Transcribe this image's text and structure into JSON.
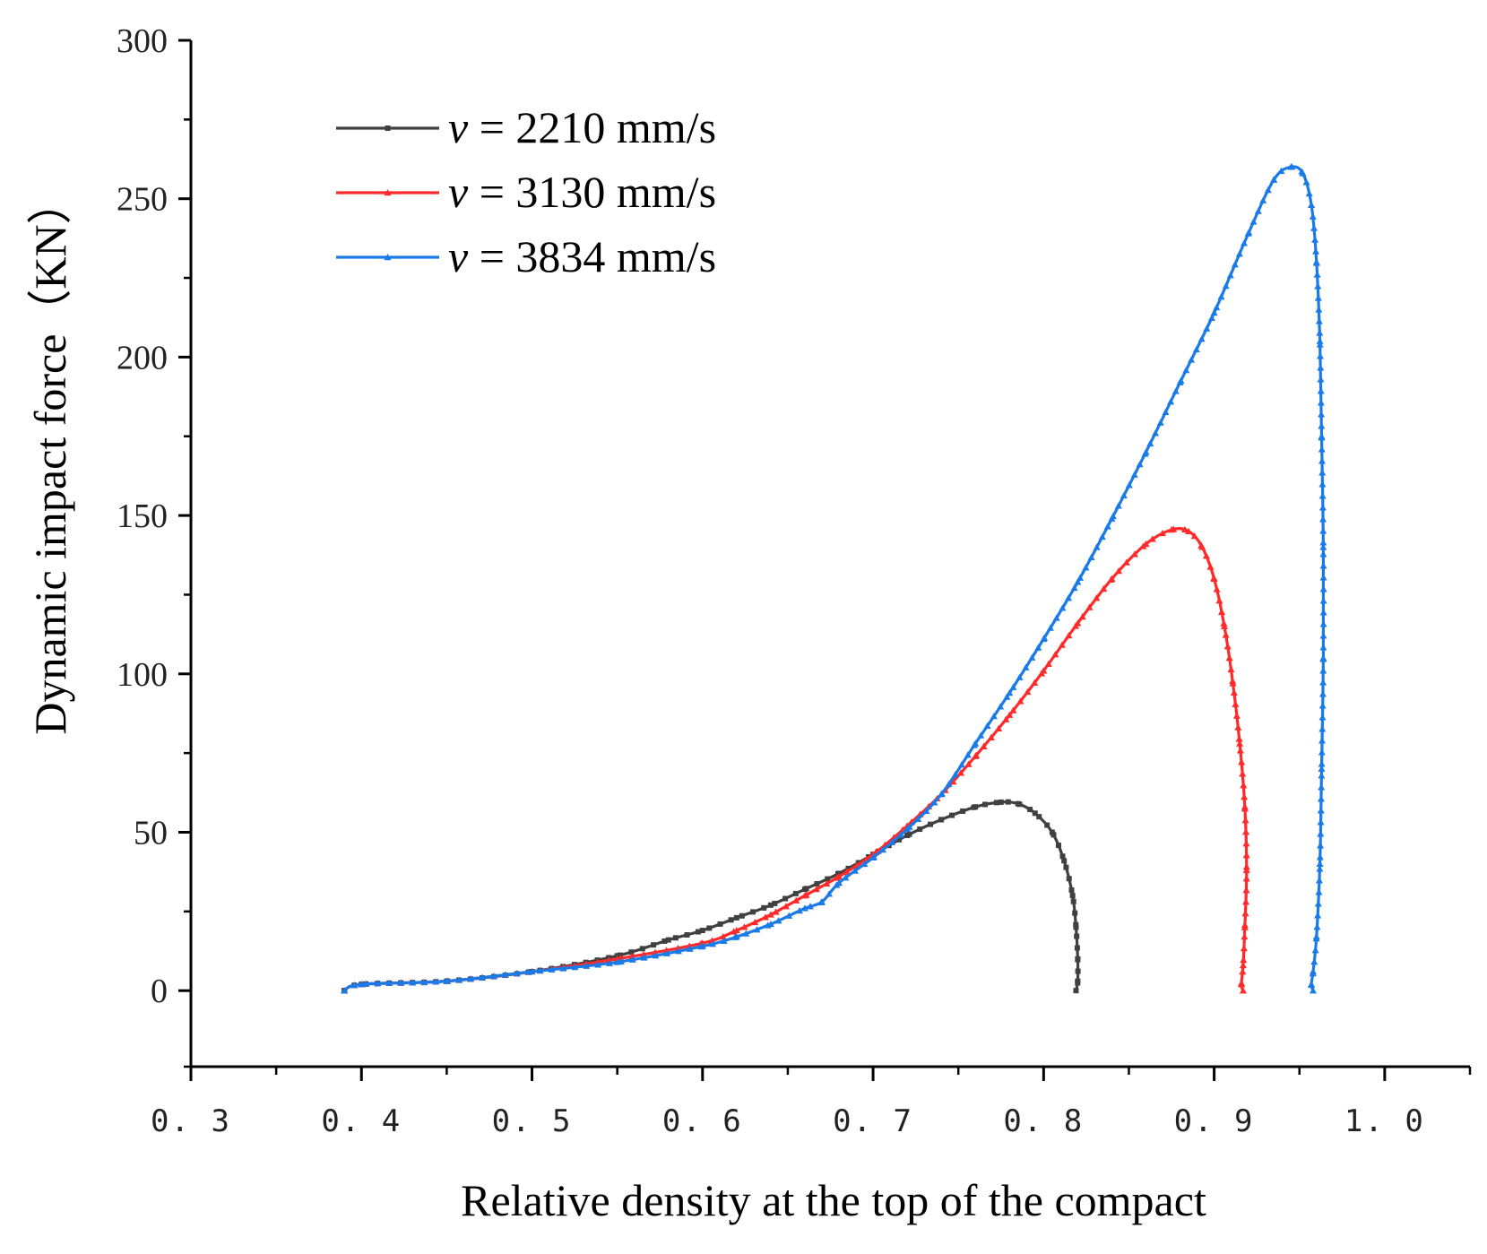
{
  "chart_data": {
    "type": "line",
    "title": "",
    "xlabel": "Relative density at the top of the compact",
    "ylabel": "Dynamic impact force（KN）",
    "xlim": [
      0.3,
      1.05
    ],
    "ylim": [
      -24,
      300
    ],
    "xticks": [
      {
        "value": 0.3,
        "label": "0. 3"
      },
      {
        "value": 0.4,
        "label": "0. 4"
      },
      {
        "value": 0.5,
        "label": "0. 5"
      },
      {
        "value": 0.6,
        "label": "0. 6"
      },
      {
        "value": 0.7,
        "label": "0. 7"
      },
      {
        "value": 0.8,
        "label": "0. 8"
      },
      {
        "value": 0.9,
        "label": "0. 9"
      },
      {
        "value": 1.0,
        "label": "1. 0"
      }
    ],
    "yticks": [
      {
        "value": 0,
        "label": "0"
      },
      {
        "value": 50,
        "label": "50"
      },
      {
        "value": 100,
        "label": "100"
      },
      {
        "value": 150,
        "label": "150"
      },
      {
        "value": 200,
        "label": "200"
      },
      {
        "value": 250,
        "label": "250"
      },
      {
        "value": 300,
        "label": "300"
      }
    ],
    "legend_position": "top-left",
    "series": [
      {
        "name": "v = 2210 mm/s",
        "legend_var": "v",
        "legend_rest": " = 2210 mm/s",
        "color": "#404040",
        "marker": "square",
        "x": [
          0.39,
          0.4,
          0.45,
          0.5,
          0.55,
          0.58,
          0.6,
          0.62,
          0.64,
          0.66,
          0.68,
          0.7,
          0.72,
          0.74,
          0.76,
          0.775,
          0.785,
          0.795,
          0.805,
          0.812,
          0.817,
          0.819,
          0.82,
          0.82,
          0.819
        ],
        "y": [
          0,
          2,
          3,
          6,
          11,
          16,
          19,
          23,
          27,
          32,
          37,
          43,
          49,
          54,
          58,
          59.5,
          59,
          56,
          50,
          41,
          30,
          20,
          10,
          3,
          0
        ]
      },
      {
        "name": "v = 3130 mm/s",
        "legend_var": "v",
        "legend_rest": " = 3130 mm/s",
        "color": "#ff2a2a",
        "marker": "triangle",
        "x": [
          0.39,
          0.4,
          0.45,
          0.5,
          0.55,
          0.6,
          0.62,
          0.64,
          0.66,
          0.68,
          0.7,
          0.72,
          0.74,
          0.76,
          0.78,
          0.8,
          0.82,
          0.84,
          0.86,
          0.875,
          0.885,
          0.893,
          0.9,
          0.906,
          0.911,
          0.915,
          0.918,
          0.919,
          0.918,
          0.917,
          0.916,
          0.917
        ],
        "y": [
          0,
          2,
          3,
          6,
          10,
          15,
          19,
          24,
          30,
          36,
          43,
          52,
          62,
          74,
          87,
          101,
          116,
          130,
          141,
          145.5,
          145,
          140,
          130,
          115,
          97,
          78,
          58,
          38,
          20,
          8,
          2,
          0
        ]
      },
      {
        "name": "v = 3834 mm/s",
        "legend_var": "v",
        "legend_rest": " = 3834 mm/s",
        "color": "#1a7be8",
        "marker": "triangle",
        "x": [
          0.39,
          0.4,
          0.45,
          0.5,
          0.55,
          0.6,
          0.62,
          0.64,
          0.66,
          0.67,
          0.68,
          0.7,
          0.72,
          0.74,
          0.76,
          0.78,
          0.8,
          0.82,
          0.84,
          0.86,
          0.88,
          0.9,
          0.92,
          0.935,
          0.945,
          0.952,
          0.957,
          0.96,
          0.962,
          0.963,
          0.964,
          0.964,
          0.963,
          0.962,
          0.96,
          0.958,
          0.957,
          0.958
        ],
        "y": [
          0,
          2,
          3,
          6,
          9,
          14,
          17,
          21,
          26,
          28,
          34,
          42,
          51,
          62,
          78,
          94,
          111,
          129,
          149,
          170,
          192,
          214,
          239,
          256,
          260,
          258,
          248,
          230,
          205,
          175,
          140,
          105,
          70,
          40,
          17,
          6,
          2,
          0
        ]
      }
    ]
  }
}
